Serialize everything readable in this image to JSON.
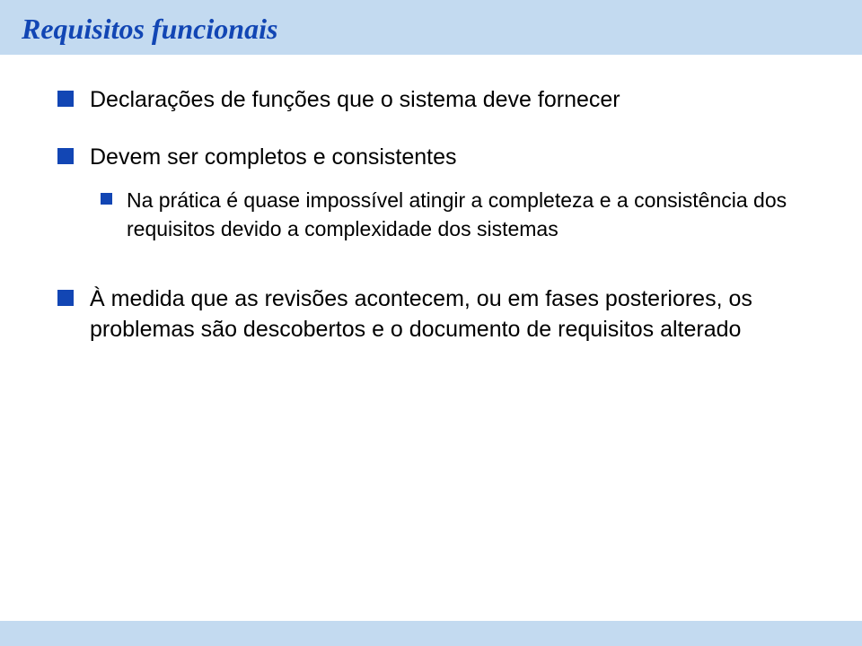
{
  "colors": {
    "title_band_bg": "#c3daf0",
    "title_text": "#1246b4",
    "bullet": "#1246b4",
    "body_text": "#000000",
    "bottom_band_bg": "#c3daf0",
    "page_bg": "#ffffff"
  },
  "typography": {
    "title_font": "Comic Sans MS",
    "title_size_pt": 24,
    "title_weight": "bold",
    "title_style": "italic",
    "body_font": "Arial",
    "lvl1_size_pt": 19,
    "lvl2_size_pt": 17
  },
  "title": "Requisitos funcionais",
  "bullets": [
    {
      "level": 1,
      "text": "Declarações de funções que o sistema deve fornecer"
    },
    {
      "level": 1,
      "text": "Devem ser completos e consistentes"
    },
    {
      "level": 2,
      "text": "Na prática é quase impossível atingir a completeza e a consistência dos requisitos devido a complexidade dos sistemas"
    },
    {
      "level": 1,
      "text": "À medida que as revisões acontecem, ou em fases posteriores, os problemas são descobertos e o documento de requisitos alterado"
    }
  ]
}
